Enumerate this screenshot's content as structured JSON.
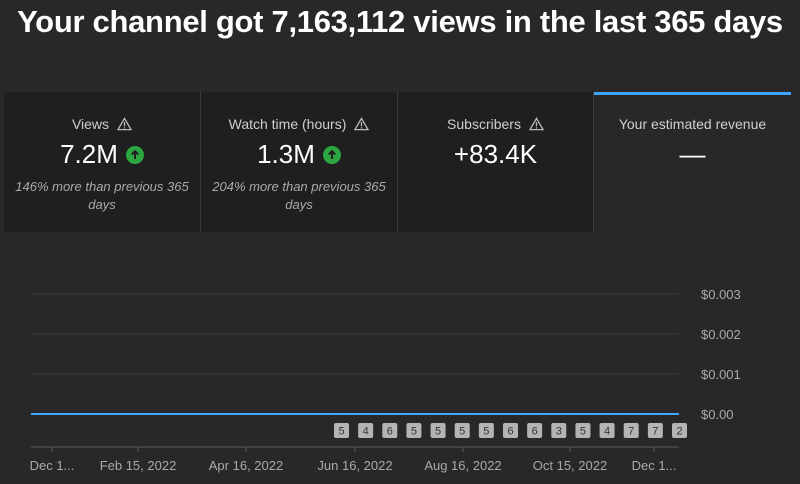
{
  "headline": "Your channel got 7,163,112 views in the last 365 days",
  "cards": [
    {
      "title": "Views",
      "value": "7.2M",
      "note": "146% more than previous 365 days",
      "has_warning": true,
      "trend": "up"
    },
    {
      "title": "Watch time (hours)",
      "value": "1.3M",
      "note": "204% more than previous 365 days",
      "has_warning": true,
      "trend": "up"
    },
    {
      "title": "Subscribers",
      "value": "+83.4K",
      "note": "",
      "has_warning": true,
      "trend": ""
    },
    {
      "title": "Your estimated revenue",
      "value": "—",
      "note": "",
      "has_warning": false,
      "trend": "",
      "selected": true
    }
  ],
  "colors": {
    "accent": "#3ea6ff",
    "up": "#2ba640",
    "line": "#3ea6ff"
  },
  "chart_data": {
    "type": "line",
    "series": [
      {
        "values": [
          0,
          0
        ]
      }
    ],
    "y_ticks": [
      "$0.003",
      "$0.002",
      "$0.001",
      "$0.00"
    ],
    "ylim": [
      0,
      0.003
    ],
    "x_ticks": [
      "Dec 1...",
      "Feb 15, 2022",
      "Apr 16, 2022",
      "Jun 16, 2022",
      "Aug 16, 2022",
      "Oct 15, 2022",
      "Dec 1..."
    ],
    "markers": [
      "5",
      "4",
      "6",
      "5",
      "5",
      "5",
      "5",
      "6",
      "6",
      "3",
      "5",
      "4",
      "7",
      "7",
      "2"
    ]
  }
}
